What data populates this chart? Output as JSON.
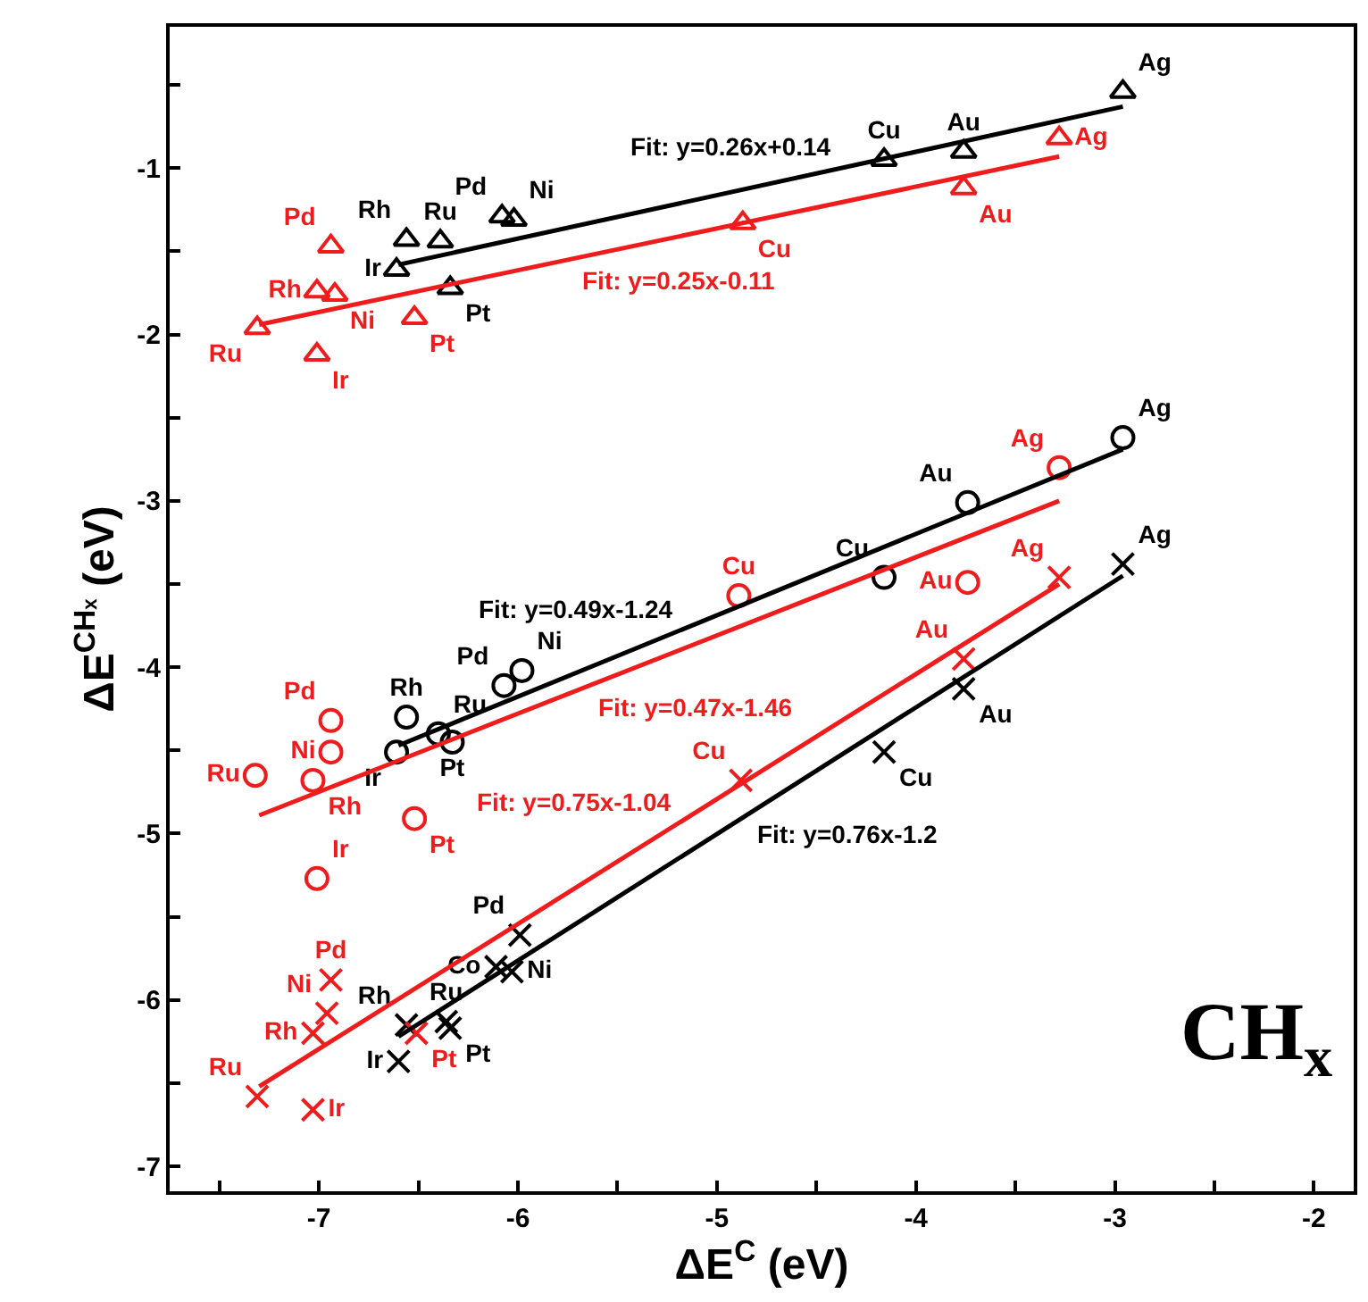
{
  "chart_data": {
    "type": "scatter",
    "xlabel": "ΔE$^{C}$ (eV)",
    "ylabel": "ΔE$^{CHₓ}$ (eV)",
    "xlim": [
      -7.75,
      -1.8
    ],
    "ylim": [
      -7.15,
      -0.15
    ],
    "xticks": [
      -7,
      -6,
      -5,
      -4,
      -3,
      -2,
      {
        "value": -7.5,
        "label": null
      },
      {
        "value": -6.5,
        "label": null
      },
      {
        "value": -5.5,
        "label": null
      },
      {
        "value": -4.5,
        "label": null
      },
      {
        "value": -3.5,
        "label": null
      },
      {
        "value": -2.5,
        "label": null
      }
    ],
    "yticks": [
      -7,
      -6,
      -5,
      -4,
      -3,
      -2,
      -1,
      {
        "value": -6.5,
        "label": null
      },
      {
        "value": -5.5,
        "label": null
      },
      {
        "value": -4.5,
        "label": null
      },
      {
        "value": -3.5,
        "label": null
      },
      {
        "value": -2.5,
        "label": null
      },
      {
        "value": -1.5,
        "label": null
      },
      {
        "value": -0.5,
        "label": null
      }
    ],
    "grid": false,
    "legend": false,
    "annotations": [
      "CH$_{x}$"
    ],
    "series": [
      {
        "type": "scatter",
        "marker": "triangle",
        "color": "#000000",
        "x": [
          -2.96,
          -3.76,
          -4.16,
          -6.02,
          -6.08,
          -6.39,
          -6.56,
          -6.61,
          -6.34
        ],
        "values": [
          -0.54,
          -0.9,
          -0.95,
          -1.31,
          -1.29,
          -1.44,
          -1.43,
          -1.61,
          -1.72
        ],
        "value_labels": [
          "Ag",
          "Au",
          "Cu",
          "Ni",
          "Pd",
          "Ru",
          "Rh",
          "Ir",
          "Pt"
        ]
      },
      {
        "type": "scatter",
        "marker": "triangle",
        "color": "#ee1c1c",
        "x": [
          -3.28,
          -3.76,
          -4.87,
          -6.94,
          -7.01,
          -6.92,
          -7.31,
          -7.01,
          -6.52
        ],
        "values": [
          -0.82,
          -1.12,
          -1.33,
          -1.47,
          -1.74,
          -1.76,
          -1.96,
          -2.12,
          -1.9
        ],
        "value_labels": [
          "Ag",
          "Au",
          "Cu",
          "Pd",
          "Rh",
          "Ni",
          "Ru",
          "Ir",
          "Pt"
        ]
      },
      {
        "type": "scatter",
        "marker": "circle",
        "color": "#000000",
        "x": [
          -2.96,
          -3.74,
          -4.16,
          -5.98,
          -6.07,
          -6.56,
          -6.4,
          -6.61,
          -6.33
        ],
        "values": [
          -2.62,
          -3.01,
          -3.46,
          -4.02,
          -4.11,
          -4.3,
          -4.4,
          -4.51,
          -4.45
        ],
        "value_labels": [
          "Ag",
          "Au",
          "Cu",
          "Ni",
          "Pd",
          "Rh",
          "Ru",
          "Ir",
          "Pt"
        ]
      },
      {
        "type": "scatter",
        "marker": "circle",
        "color": "#ee1c1c",
        "x": [
          -3.28,
          -3.74,
          -4.89,
          -6.94,
          -6.94,
          -7.32,
          -7.03,
          -6.52,
          -7.01
        ],
        "values": [
          -2.8,
          -3.49,
          -3.57,
          -4.32,
          -4.51,
          -4.65,
          -4.68,
          -4.91,
          -5.27
        ],
        "value_labels": [
          "Ag",
          "Au",
          "Cu",
          "Pd",
          "Ni",
          "Ru",
          "Rh",
          "Pt",
          "Ir"
        ]
      },
      {
        "type": "scatter",
        "marker": "cross",
        "color": "#000000",
        "x": [
          -2.96,
          -3.76,
          -4.16,
          -5.99,
          -6.11,
          -6.03,
          -6.36,
          -6.56,
          -6.34,
          -6.6
        ],
        "values": [
          -3.38,
          -4.13,
          -4.51,
          -5.61,
          -5.8,
          -5.83,
          -6.13,
          -6.15,
          -6.17,
          -6.37
        ],
        "value_labels": [
          "Ag",
          "Au",
          "Cu",
          "Pd",
          "Co",
          "Ni",
          "Ru",
          "Rh",
          "Pt",
          "Ir"
        ]
      },
      {
        "type": "scatter",
        "marker": "cross",
        "color": "#ee1c1c",
        "x": [
          -3.28,
          -3.76,
          -4.88,
          -6.94,
          -6.96,
          -7.03,
          -6.51,
          -7.31,
          -7.03
        ],
        "values": [
          -3.46,
          -3.95,
          -4.68,
          -5.88,
          -6.08,
          -6.2,
          -6.2,
          -6.58,
          -6.66
        ],
        "value_labels": [
          "Ag",
          "Au",
          "Cu",
          "Pd",
          "Ni",
          "Rh",
          "Pt",
          "Ru",
          "Ir"
        ]
      },
      {
        "type": "line",
        "name": "Fit: y=0.26x+0.14",
        "color": "#000000",
        "x": [
          -6.6,
          -2.96
        ],
        "values": [
          -1.58,
          -0.63
        ]
      },
      {
        "type": "line",
        "name": "Fit: y=0.25x-0.11",
        "color": "#ee1c1c",
        "x": [
          -7.3,
          -3.28
        ],
        "values": [
          -1.94,
          -0.93
        ]
      },
      {
        "type": "line",
        "name": "Fit: y=0.49x-1.24",
        "color": "#000000",
        "x": [
          -6.6,
          -2.96
        ],
        "values": [
          -4.47,
          -2.69
        ]
      },
      {
        "type": "line",
        "name": "Fit: y=0.47x-1.46",
        "color": "#ee1c1c",
        "x": [
          -7.3,
          -3.28
        ],
        "values": [
          -4.89,
          -3.0
        ]
      },
      {
        "type": "line",
        "name": "Fit: y=0.76x-1.2",
        "color": "#000000",
        "x": [
          -6.6,
          -2.96
        ],
        "values": [
          -6.22,
          -3.45
        ]
      },
      {
        "type": "line",
        "name": "Fit: y=0.75x-1.04",
        "color": "#ee1c1c",
        "x": [
          -7.3,
          -3.28
        ],
        "values": [
          -6.52,
          -3.5
        ]
      }
    ]
  }
}
